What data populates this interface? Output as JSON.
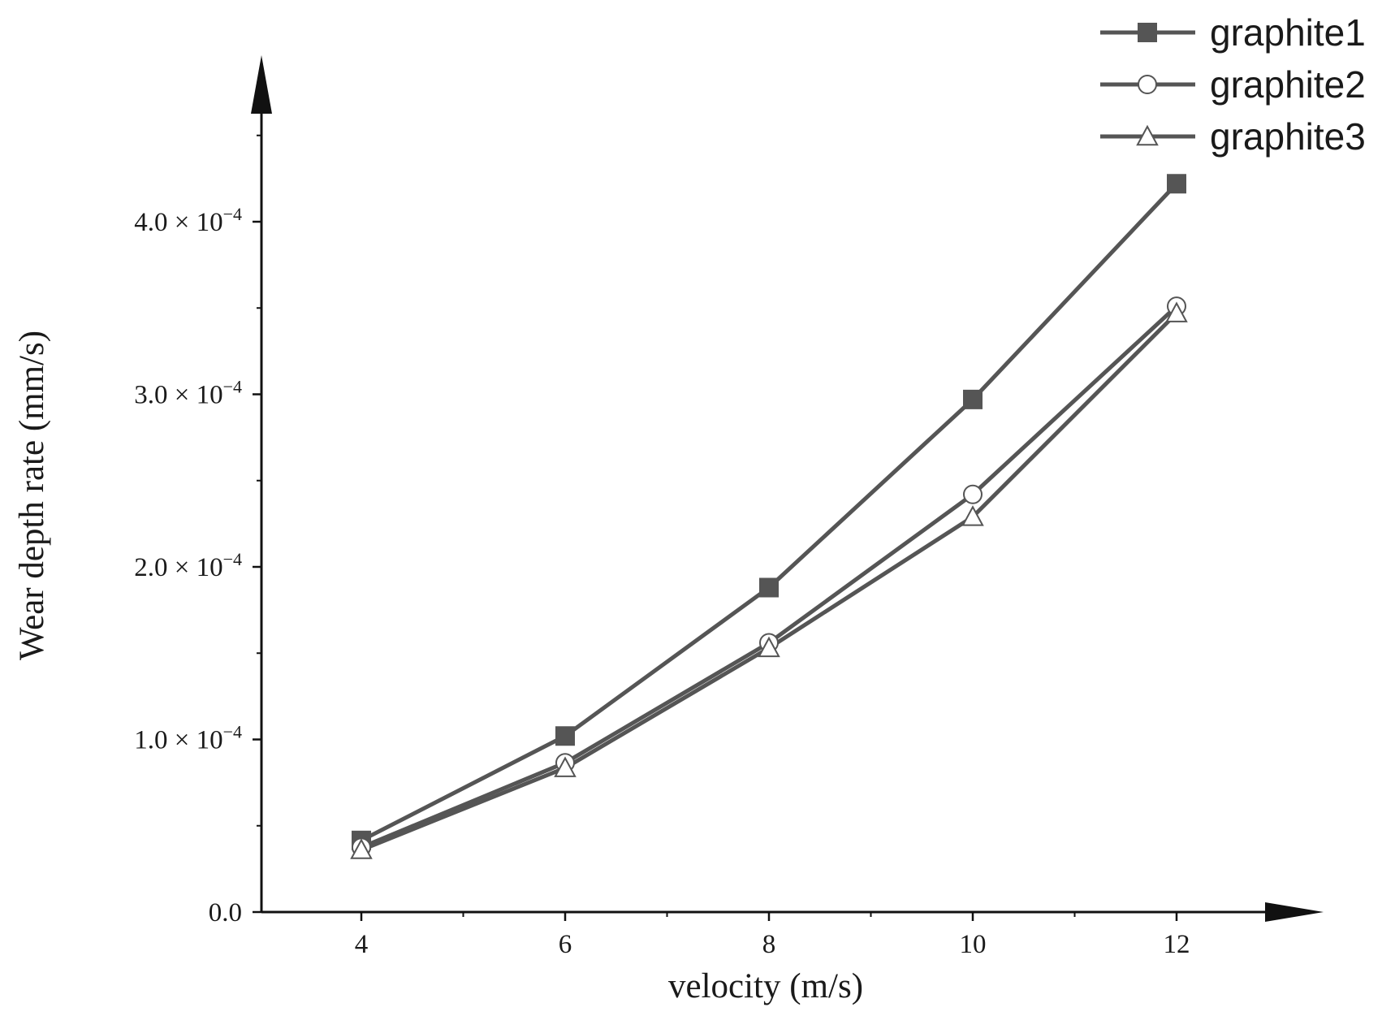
{
  "chart_data": {
    "type": "line",
    "title": "",
    "xlabel": "velocity (m/s)",
    "ylabel": "Wear depth rate (mm/s)",
    "xlim": [
      3,
      13
    ],
    "ylim": [
      0,
      0.00045
    ],
    "x_ticks": [
      4,
      6,
      8,
      10,
      12
    ],
    "x_tick_labels": [
      "4",
      "6",
      "8",
      "10",
      "12"
    ],
    "y_ticks": [
      0,
      0.0001,
      0.0002,
      0.0003,
      0.0004
    ],
    "y_tick_labels": [
      {
        "mantissa": "0.0",
        "exponent": ""
      },
      {
        "mantissa": "1.0 × 10",
        "exponent": "−4"
      },
      {
        "mantissa": "2.0 × 10",
        "exponent": "−4"
      },
      {
        "mantissa": "3.0 × 10",
        "exponent": "−4"
      },
      {
        "mantissa": "4.0 × 10",
        "exponent": "−4"
      }
    ],
    "grid": false,
    "legend_position": "top-right",
    "series": [
      {
        "name": "graphite1",
        "marker": "filled-square",
        "color": "#555555",
        "x": [
          4,
          6,
          8,
          10,
          12
        ],
        "y": [
          4.15e-05,
          0.000102,
          0.000188,
          0.000297,
          0.000422
        ]
      },
      {
        "name": "graphite2",
        "marker": "open-circle",
        "color": "#555555",
        "x": [
          4,
          6,
          8,
          10,
          12
        ],
        "y": [
          3.75e-05,
          8.65e-05,
          0.000156,
          0.000242,
          0.000351
        ]
      },
      {
        "name": "graphite3",
        "marker": "open-triangle",
        "color": "#555555",
        "x": [
          4,
          6,
          8,
          10,
          12
        ],
        "y": [
          3.6e-05,
          8.35e-05,
          0.000153,
          0.000229,
          0.000347
        ]
      }
    ]
  }
}
